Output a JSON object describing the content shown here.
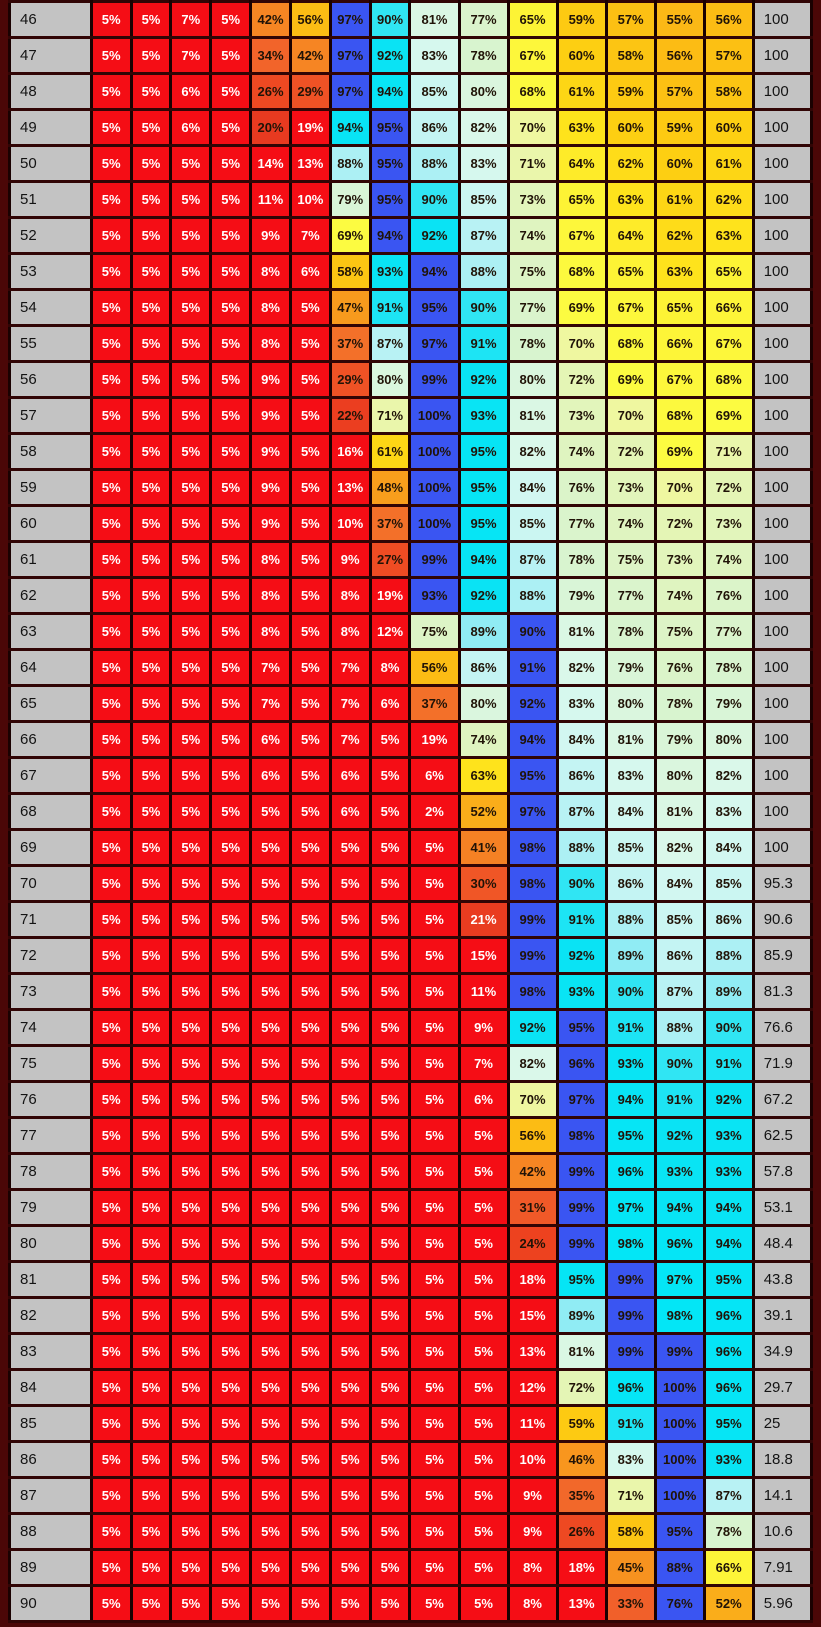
{
  "value_suffix": "%",
  "colors": {
    "row_max": "#3A55F2",
    "label_bg": "#C3C3C3",
    "page_bg": "#4B0707",
    "grid_border": "#1A0101",
    "row_border": "#310505",
    "white_text": "#FFFFFF",
    "dark_text": "#201307",
    "white_text_below": 20,
    "white_text_values": [
      21
    ],
    "stops": [
      [
        0,
        "#F50D15"
      ],
      [
        19.4,
        "#F50D15"
      ],
      [
        20,
        "#E83A20"
      ],
      [
        24,
        "#ED421F"
      ],
      [
        28,
        "#EF4F24"
      ],
      [
        33,
        "#F1602A"
      ],
      [
        37,
        "#F37029"
      ],
      [
        42,
        "#F68523"
      ],
      [
        47,
        "#F89A1D"
      ],
      [
        52,
        "#FAAD1A"
      ],
      [
        57,
        "#FCC013"
      ],
      [
        60,
        "#FDCF12"
      ],
      [
        63,
        "#FEE31C"
      ],
      [
        65,
        "#FDF335"
      ],
      [
        69,
        "#FCFB41"
      ],
      [
        70,
        "#EFF7A0"
      ],
      [
        72,
        "#E4F5B5"
      ],
      [
        75,
        "#DDF4C6"
      ],
      [
        78,
        "#D8F4CF"
      ],
      [
        80,
        "#DAF6DE"
      ],
      [
        82,
        "#DAF8EA"
      ],
      [
        84,
        "#D2F7F1"
      ],
      [
        86,
        "#C4F4F3"
      ],
      [
        88,
        "#ACF0F4"
      ],
      [
        89,
        "#90ECF4"
      ],
      [
        90,
        "#30E5F3"
      ],
      [
        92,
        "#0AE3F4"
      ],
      [
        100,
        "#00E7F7"
      ]
    ]
  },
  "chart_data": {
    "type": "heatmap",
    "title": "",
    "xlabel": "",
    "ylabel": "",
    "column_labels": [],
    "legend": "cell color encodes percentage on red-to-blue jet scale; row maximum shown in royal blue",
    "rows": [
      {
        "label": "46",
        "values": [
          5,
          5,
          7,
          5,
          42,
          56,
          97,
          90,
          81,
          77,
          65,
          59,
          57,
          55,
          56
        ],
        "right": "100"
      },
      {
        "label": "47",
        "values": [
          5,
          5,
          7,
          5,
          34,
          42,
          97,
          92,
          83,
          78,
          67,
          60,
          58,
          56,
          57
        ],
        "right": "100"
      },
      {
        "label": "48",
        "values": [
          5,
          5,
          6,
          5,
          26,
          29,
          97,
          94,
          85,
          80,
          68,
          61,
          59,
          57,
          58
        ],
        "right": "100"
      },
      {
        "label": "49",
        "values": [
          5,
          5,
          6,
          5,
          20,
          19,
          94,
          95,
          86,
          82,
          70,
          63,
          60,
          59,
          60
        ],
        "right": "100"
      },
      {
        "label": "50",
        "values": [
          5,
          5,
          5,
          5,
          14,
          13,
          88,
          95,
          88,
          83,
          71,
          64,
          62,
          60,
          61
        ],
        "right": "100"
      },
      {
        "label": "51",
        "values": [
          5,
          5,
          5,
          5,
          11,
          10,
          79,
          95,
          90,
          85,
          73,
          65,
          63,
          61,
          62
        ],
        "right": "100"
      },
      {
        "label": "52",
        "values": [
          5,
          5,
          5,
          5,
          9,
          7,
          69,
          94,
          92,
          87,
          74,
          67,
          64,
          62,
          63
        ],
        "right": "100"
      },
      {
        "label": "53",
        "values": [
          5,
          5,
          5,
          5,
          8,
          6,
          58,
          93,
          94,
          88,
          75,
          68,
          65,
          63,
          65
        ],
        "right": "100"
      },
      {
        "label": "54",
        "values": [
          5,
          5,
          5,
          5,
          8,
          5,
          47,
          91,
          95,
          90,
          77,
          69,
          67,
          65,
          66
        ],
        "right": "100"
      },
      {
        "label": "55",
        "values": [
          5,
          5,
          5,
          5,
          8,
          5,
          37,
          87,
          97,
          91,
          78,
          70,
          68,
          66,
          67
        ],
        "right": "100"
      },
      {
        "label": "56",
        "values": [
          5,
          5,
          5,
          5,
          9,
          5,
          29,
          80,
          99,
          92,
          80,
          72,
          69,
          67,
          68
        ],
        "right": "100"
      },
      {
        "label": "57",
        "values": [
          5,
          5,
          5,
          5,
          9,
          5,
          22,
          71,
          100,
          93,
          81,
          73,
          70,
          68,
          69
        ],
        "right": "100"
      },
      {
        "label": "58",
        "values": [
          5,
          5,
          5,
          5,
          9,
          5,
          16,
          61,
          100,
          95,
          82,
          74,
          72,
          69,
          71
        ],
        "right": "100"
      },
      {
        "label": "59",
        "values": [
          5,
          5,
          5,
          5,
          9,
          5,
          13,
          48,
          100,
          95,
          84,
          76,
          73,
          70,
          72
        ],
        "right": "100"
      },
      {
        "label": "60",
        "values": [
          5,
          5,
          5,
          5,
          9,
          5,
          10,
          37,
          100,
          95,
          85,
          77,
          74,
          72,
          73
        ],
        "right": "100"
      },
      {
        "label": "61",
        "values": [
          5,
          5,
          5,
          5,
          8,
          5,
          9,
          27,
          99,
          94,
          87,
          78,
          75,
          73,
          74
        ],
        "right": "100"
      },
      {
        "label": "62",
        "values": [
          5,
          5,
          5,
          5,
          8,
          5,
          8,
          19,
          93,
          92,
          88,
          79,
          77,
          74,
          76
        ],
        "right": "100"
      },
      {
        "label": "63",
        "values": [
          5,
          5,
          5,
          5,
          8,
          5,
          8,
          12,
          75,
          89,
          90,
          81,
          78,
          75,
          77
        ],
        "right": "100"
      },
      {
        "label": "64",
        "values": [
          5,
          5,
          5,
          5,
          7,
          5,
          7,
          8,
          56,
          86,
          91,
          82,
          79,
          76,
          78
        ],
        "right": "100"
      },
      {
        "label": "65",
        "values": [
          5,
          5,
          5,
          5,
          7,
          5,
          7,
          6,
          37,
          80,
          92,
          83,
          80,
          78,
          79
        ],
        "right": "100"
      },
      {
        "label": "66",
        "values": [
          5,
          5,
          5,
          5,
          6,
          5,
          7,
          5,
          19,
          74,
          94,
          84,
          81,
          79,
          80
        ],
        "right": "100"
      },
      {
        "label": "67",
        "values": [
          5,
          5,
          5,
          5,
          6,
          5,
          6,
          5,
          6,
          63,
          95,
          86,
          83,
          80,
          82
        ],
        "right": "100"
      },
      {
        "label": "68",
        "values": [
          5,
          5,
          5,
          5,
          5,
          5,
          6,
          5,
          2,
          52,
          97,
          87,
          84,
          81,
          83
        ],
        "right": "100"
      },
      {
        "label": "69",
        "values": [
          5,
          5,
          5,
          5,
          5,
          5,
          5,
          5,
          5,
          41,
          98,
          88,
          85,
          82,
          84
        ],
        "right": "100"
      },
      {
        "label": "70",
        "values": [
          5,
          5,
          5,
          5,
          5,
          5,
          5,
          5,
          5,
          30,
          98,
          90,
          86,
          84,
          85
        ],
        "right": "95.3"
      },
      {
        "label": "71",
        "values": [
          5,
          5,
          5,
          5,
          5,
          5,
          5,
          5,
          5,
          21,
          99,
          91,
          88,
          85,
          86
        ],
        "right": "90.6"
      },
      {
        "label": "72",
        "values": [
          5,
          5,
          5,
          5,
          5,
          5,
          5,
          5,
          5,
          15,
          99,
          92,
          89,
          86,
          88
        ],
        "right": "85.9"
      },
      {
        "label": "73",
        "values": [
          5,
          5,
          5,
          5,
          5,
          5,
          5,
          5,
          5,
          11,
          98,
          93,
          90,
          87,
          89
        ],
        "right": "81.3"
      },
      {
        "label": "74",
        "values": [
          5,
          5,
          5,
          5,
          5,
          5,
          5,
          5,
          5,
          9,
          92,
          95,
          91,
          88,
          90
        ],
        "right": "76.6"
      },
      {
        "label": "75",
        "values": [
          5,
          5,
          5,
          5,
          5,
          5,
          5,
          5,
          5,
          7,
          82,
          96,
          93,
          90,
          91
        ],
        "right": "71.9"
      },
      {
        "label": "76",
        "values": [
          5,
          5,
          5,
          5,
          5,
          5,
          5,
          5,
          5,
          6,
          70,
          97,
          94,
          91,
          92
        ],
        "right": "67.2"
      },
      {
        "label": "77",
        "values": [
          5,
          5,
          5,
          5,
          5,
          5,
          5,
          5,
          5,
          5,
          56,
          98,
          95,
          92,
          93
        ],
        "right": "62.5"
      },
      {
        "label": "78",
        "values": [
          5,
          5,
          5,
          5,
          5,
          5,
          5,
          5,
          5,
          5,
          42,
          99,
          96,
          93,
          93
        ],
        "right": "57.8"
      },
      {
        "label": "79",
        "values": [
          5,
          5,
          5,
          5,
          5,
          5,
          5,
          5,
          5,
          5,
          31,
          99,
          97,
          94,
          94
        ],
        "right": "53.1"
      },
      {
        "label": "80",
        "values": [
          5,
          5,
          5,
          5,
          5,
          5,
          5,
          5,
          5,
          5,
          24,
          99,
          98,
          96,
          94
        ],
        "right": "48.4"
      },
      {
        "label": "81",
        "values": [
          5,
          5,
          5,
          5,
          5,
          5,
          5,
          5,
          5,
          5,
          18,
          95,
          99,
          97,
          95
        ],
        "right": "43.8"
      },
      {
        "label": "82",
        "values": [
          5,
          5,
          5,
          5,
          5,
          5,
          5,
          5,
          5,
          5,
          15,
          89,
          99,
          98,
          96
        ],
        "right": "39.1"
      },
      {
        "label": "83",
        "values": [
          5,
          5,
          5,
          5,
          5,
          5,
          5,
          5,
          5,
          5,
          13,
          81,
          99,
          99,
          96
        ],
        "right": "34.9"
      },
      {
        "label": "84",
        "values": [
          5,
          5,
          5,
          5,
          5,
          5,
          5,
          5,
          5,
          5,
          12,
          72,
          96,
          100,
          96
        ],
        "right": "29.7"
      },
      {
        "label": "85",
        "values": [
          5,
          5,
          5,
          5,
          5,
          5,
          5,
          5,
          5,
          5,
          11,
          59,
          91,
          100,
          95
        ],
        "right": "25"
      },
      {
        "label": "86",
        "values": [
          5,
          5,
          5,
          5,
          5,
          5,
          5,
          5,
          5,
          5,
          10,
          46,
          83,
          100,
          93
        ],
        "right": "18.8"
      },
      {
        "label": "87",
        "values": [
          5,
          5,
          5,
          5,
          5,
          5,
          5,
          5,
          5,
          5,
          9,
          35,
          71,
          100,
          87
        ],
        "right": "14.1"
      },
      {
        "label": "88",
        "values": [
          5,
          5,
          5,
          5,
          5,
          5,
          5,
          5,
          5,
          5,
          9,
          26,
          58,
          95,
          78
        ],
        "right": "10.6"
      },
      {
        "label": "89",
        "values": [
          5,
          5,
          5,
          5,
          5,
          5,
          5,
          5,
          5,
          5,
          8,
          18,
          45,
          88,
          66
        ],
        "right": "7.91"
      },
      {
        "label": "90",
        "values": [
          5,
          5,
          5,
          5,
          5,
          5,
          5,
          5,
          5,
          5,
          8,
          13,
          33,
          76,
          52
        ],
        "right": "5.96"
      }
    ]
  }
}
